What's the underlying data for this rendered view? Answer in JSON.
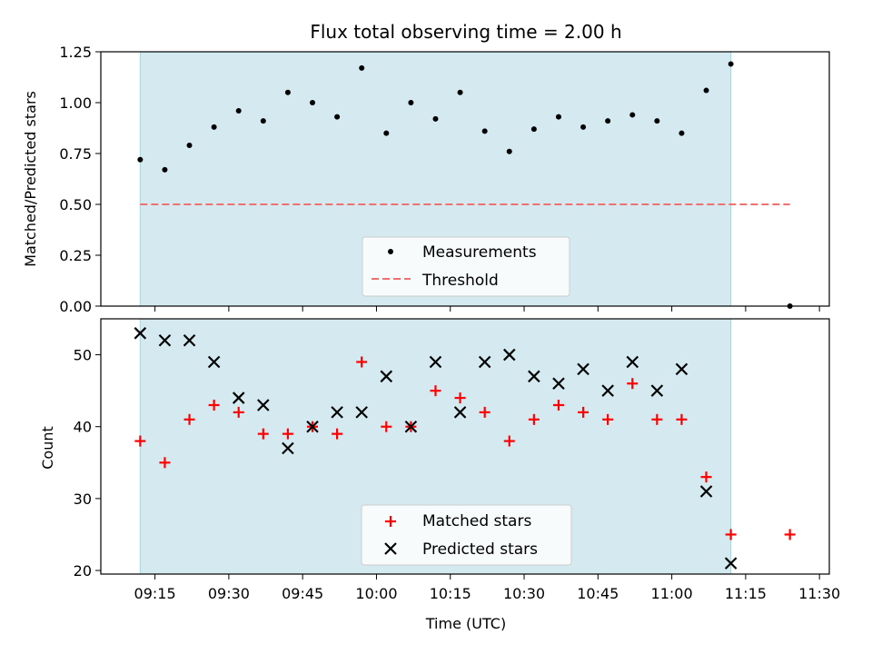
{
  "chart_data": [
    {
      "type": "scatter",
      "title": "Flux total observing time = 2.00 h",
      "xlabel": "",
      "ylabel": "Matched/Predicted stars",
      "ylim": [
        0,
        1.25
      ],
      "yticks": [
        "0.00",
        "0.25",
        "0.50",
        "0.75",
        "1.00",
        "1.25"
      ],
      "shaded_span": [
        "09:12",
        "11:12"
      ],
      "shaded_color": "#d4eaf0",
      "legend_position": "lower center",
      "series": [
        {
          "name": "Measurements",
          "marker": "dot",
          "color": "#000000",
          "x": [
            "09:12",
            "09:17",
            "09:22",
            "09:27",
            "09:32",
            "09:37",
            "09:42",
            "09:47",
            "09:52",
            "09:57",
            "10:02",
            "10:07",
            "10:12",
            "10:17",
            "10:22",
            "10:27",
            "10:32",
            "10:37",
            "10:42",
            "10:47",
            "10:52",
            "10:57",
            "11:02",
            "11:07",
            "11:12",
            "11:24"
          ],
          "y": [
            0.72,
            0.67,
            0.79,
            0.88,
            0.96,
            0.91,
            1.05,
            1.0,
            0.93,
            1.17,
            0.85,
            1.0,
            0.92,
            1.05,
            0.86,
            0.76,
            0.87,
            0.93,
            0.88,
            0.91,
            0.94,
            0.91,
            0.85,
            1.06,
            1.19,
            0.0
          ]
        },
        {
          "name": "Threshold",
          "style": "dashed",
          "color": "#f07070",
          "x": [
            "09:12",
            "11:24"
          ],
          "y": [
            0.5,
            0.5
          ]
        }
      ]
    },
    {
      "type": "scatter",
      "title": "",
      "xlabel": "Time (UTC)",
      "ylabel": "Count",
      "ylim": [
        19.5,
        55
      ],
      "yticks": [
        "20",
        "30",
        "40",
        "50"
      ],
      "xticks": [
        "09:15",
        "09:30",
        "09:45",
        "10:00",
        "10:15",
        "10:30",
        "10:45",
        "11:00",
        "11:15",
        "11:30"
      ],
      "shaded_span": [
        "09:12",
        "11:12"
      ],
      "shaded_color": "#d4eaf0",
      "legend_position": "lower center",
      "series": [
        {
          "name": "Matched stars",
          "marker": "plus",
          "color": "#ff0000",
          "x": [
            "09:12",
            "09:17",
            "09:22",
            "09:27",
            "09:32",
            "09:37",
            "09:42",
            "09:47",
            "09:52",
            "09:57",
            "10:02",
            "10:07",
            "10:12",
            "10:17",
            "10:22",
            "10:27",
            "10:32",
            "10:37",
            "10:42",
            "10:47",
            "10:52",
            "10:57",
            "11:02",
            "11:07",
            "11:12",
            "11:24"
          ],
          "y": [
            38,
            35,
            41,
            43,
            42,
            39,
            39,
            40,
            39,
            49,
            40,
            40,
            45,
            44,
            42,
            38,
            41,
            43,
            42,
            41,
            46,
            41,
            41,
            33,
            25,
            25
          ]
        },
        {
          "name": "Predicted stars",
          "marker": "x",
          "color": "#000000",
          "x": [
            "09:12",
            "09:17",
            "09:22",
            "09:27",
            "09:32",
            "09:37",
            "09:42",
            "09:47",
            "09:52",
            "09:57",
            "10:02",
            "10:07",
            "10:12",
            "10:17",
            "10:22",
            "10:27",
            "10:32",
            "10:37",
            "10:42",
            "10:47",
            "10:52",
            "10:57",
            "11:02",
            "11:07",
            "11:12"
          ],
          "y": [
            53,
            52,
            52,
            49,
            44,
            43,
            37,
            40,
            42,
            42,
            47,
            40,
            49,
            42,
            49,
            50,
            47,
            46,
            48,
            45,
            49,
            45,
            48,
            31,
            21
          ]
        }
      ]
    }
  ]
}
